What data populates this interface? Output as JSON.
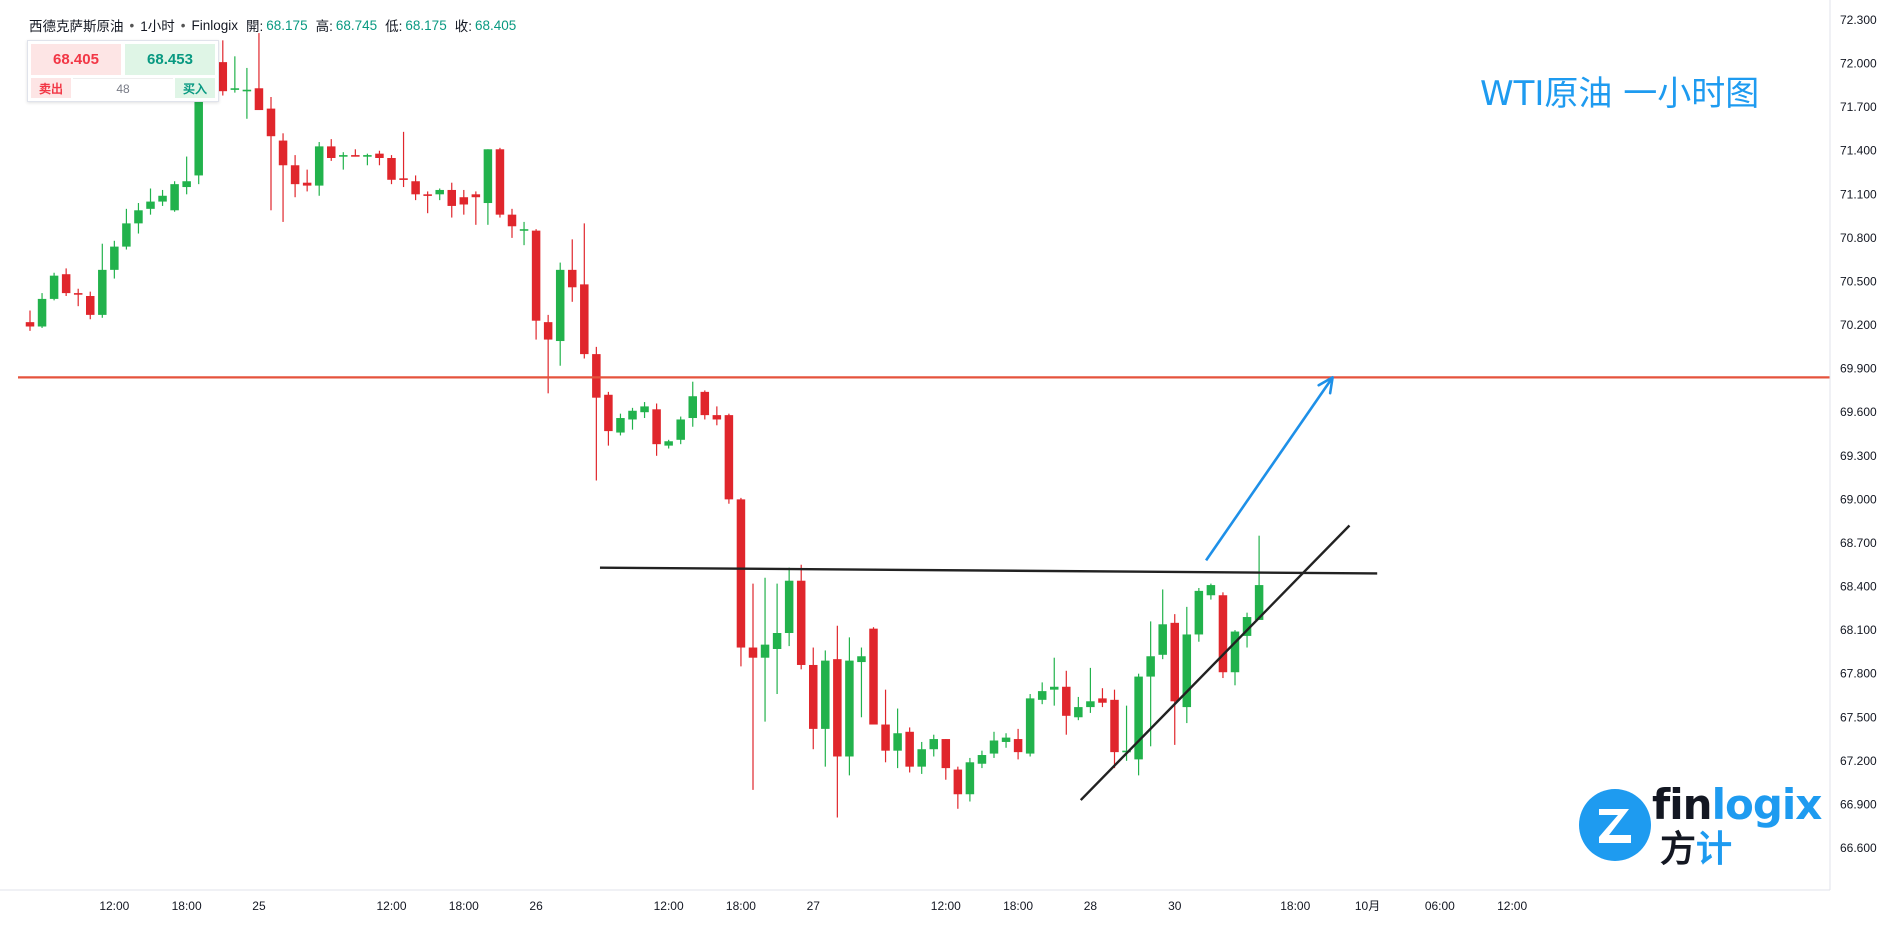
{
  "header": {
    "symbol": "西德克萨斯原油",
    "interval": "1小时",
    "source": "Finlogix",
    "open_label": "開:",
    "open": "68.175",
    "high_label": "高:",
    "high": "68.745",
    "low_label": "低:",
    "low": "68.175",
    "close_label": "收:",
    "close": "68.405"
  },
  "trade_box": {
    "sell_price": "68.405",
    "buy_price": "68.453",
    "sell_label": "卖出",
    "buy_label": "买入",
    "spread": "48"
  },
  "title": "WTI原油 一小时图",
  "logo": {
    "word_a": "fin",
    "word_b": "logix",
    "cn_a": "方",
    "cn_b": "计"
  },
  "colors": {
    "up": "#22b24c",
    "down": "#e0262c",
    "resistance": "#e5533d",
    "trendline": "#222222",
    "arrow": "#1e90e8",
    "title": "#1e9bf0"
  },
  "chart_data": {
    "type": "candlestick",
    "y_ticks": [
      "72.300",
      "72.000",
      "71.700",
      "71.400",
      "71.100",
      "70.800",
      "70.500",
      "70.200",
      "69.900",
      "69.600",
      "69.300",
      "69.000",
      "68.700",
      "68.400",
      "68.100",
      "67.800",
      "67.500",
      "67.200",
      "66.900",
      "66.600"
    ],
    "ylim": [
      66.4,
      72.35
    ],
    "x_tick_labels": [
      {
        "i": 7,
        "label": "12:00"
      },
      {
        "i": 13,
        "label": "18:00"
      },
      {
        "i": 19,
        "label": "25"
      },
      {
        "i": 30,
        "label": "12:00"
      },
      {
        "i": 36,
        "label": "18:00"
      },
      {
        "i": 42,
        "label": "26"
      },
      {
        "i": 53,
        "label": "12:00"
      },
      {
        "i": 59,
        "label": "18:00"
      },
      {
        "i": 65,
        "label": "27"
      },
      {
        "i": 76,
        "label": "12:00"
      },
      {
        "i": 82,
        "label": "18:00"
      },
      {
        "i": 88,
        "label": "28"
      },
      {
        "i": 95,
        "label": "30"
      },
      {
        "i": 105,
        "label": "18:00"
      },
      {
        "i": 111,
        "label": "10月"
      },
      {
        "i": 117,
        "label": "06:00"
      },
      {
        "i": 123,
        "label": "12:00"
      }
    ],
    "x_start_index": 0,
    "x_end_index": 127.5,
    "candles": [
      {
        "o": 70.22,
        "h": 70.3,
        "l": 70.16,
        "c": 70.19
      },
      {
        "o": 70.19,
        "h": 70.42,
        "l": 70.18,
        "c": 70.38
      },
      {
        "o": 70.38,
        "h": 70.56,
        "l": 70.37,
        "c": 70.54
      },
      {
        "o": 70.55,
        "h": 70.59,
        "l": 70.4,
        "c": 70.42
      },
      {
        "o": 70.42,
        "h": 70.45,
        "l": 70.33,
        "c": 70.41
      },
      {
        "o": 70.4,
        "h": 70.43,
        "l": 70.24,
        "c": 70.27
      },
      {
        "o": 70.27,
        "h": 70.76,
        "l": 70.25,
        "c": 70.58
      },
      {
        "o": 70.58,
        "h": 70.78,
        "l": 70.52,
        "c": 70.74
      },
      {
        "o": 70.74,
        "h": 71.0,
        "l": 70.72,
        "c": 70.9
      },
      {
        "o": 70.9,
        "h": 71.04,
        "l": 70.83,
        "c": 70.99
      },
      {
        "o": 71.0,
        "h": 71.14,
        "l": 70.96,
        "c": 71.05
      },
      {
        "o": 71.05,
        "h": 71.13,
        "l": 71.02,
        "c": 71.09
      },
      {
        "o": 70.99,
        "h": 71.19,
        "l": 70.98,
        "c": 71.17
      },
      {
        "o": 71.15,
        "h": 71.36,
        "l": 71.1,
        "c": 71.19
      },
      {
        "o": 71.23,
        "h": 71.81,
        "l": 71.17,
        "c": 71.78
      },
      {
        "o": 71.76,
        "h": 72.02,
        "l": 71.74,
        "c": 72.01
      },
      {
        "o": 72.01,
        "h": 72.16,
        "l": 71.78,
        "c": 71.81
      },
      {
        "o": 71.82,
        "h": 72.05,
        "l": 71.8,
        "c": 71.83
      },
      {
        "o": 71.82,
        "h": 71.97,
        "l": 71.62,
        "c": 71.82
      },
      {
        "o": 71.83,
        "h": 72.21,
        "l": 71.73,
        "c": 71.68
      },
      {
        "o": 71.69,
        "h": 71.77,
        "l": 70.99,
        "c": 71.5
      },
      {
        "o": 71.47,
        "h": 71.52,
        "l": 70.91,
        "c": 71.3
      },
      {
        "o": 71.3,
        "h": 71.37,
        "l": 71.08,
        "c": 71.17
      },
      {
        "o": 71.18,
        "h": 71.27,
        "l": 71.12,
        "c": 71.16
      },
      {
        "o": 71.16,
        "h": 71.46,
        "l": 71.09,
        "c": 71.43
      },
      {
        "o": 71.43,
        "h": 71.48,
        "l": 71.33,
        "c": 71.35
      },
      {
        "o": 71.36,
        "h": 71.39,
        "l": 71.27,
        "c": 71.37
      },
      {
        "o": 71.37,
        "h": 71.41,
        "l": 71.36,
        "c": 71.36
      },
      {
        "o": 71.37,
        "h": 71.38,
        "l": 71.3,
        "c": 71.37
      },
      {
        "o": 71.38,
        "h": 71.4,
        "l": 71.3,
        "c": 71.35
      },
      {
        "o": 71.35,
        "h": 71.37,
        "l": 71.17,
        "c": 71.2
      },
      {
        "o": 71.21,
        "h": 71.53,
        "l": 71.15,
        "c": 71.2
      },
      {
        "o": 71.19,
        "h": 71.23,
        "l": 71.06,
        "c": 71.1
      },
      {
        "o": 71.1,
        "h": 71.12,
        "l": 70.97,
        "c": 71.09
      },
      {
        "o": 71.1,
        "h": 71.14,
        "l": 71.06,
        "c": 71.13
      },
      {
        "o": 71.13,
        "h": 71.18,
        "l": 70.94,
        "c": 71.02
      },
      {
        "o": 71.08,
        "h": 71.13,
        "l": 70.96,
        "c": 71.03
      },
      {
        "o": 71.1,
        "h": 71.12,
        "l": 70.89,
        "c": 71.08
      },
      {
        "o": 71.04,
        "h": 71.41,
        "l": 70.89,
        "c": 71.41
      },
      {
        "o": 71.41,
        "h": 71.42,
        "l": 70.94,
        "c": 70.96
      },
      {
        "o": 70.96,
        "h": 71.0,
        "l": 70.8,
        "c": 70.88
      },
      {
        "o": 70.85,
        "h": 70.91,
        "l": 70.75,
        "c": 70.86
      },
      {
        "o": 70.85,
        "h": 70.86,
        "l": 70.1,
        "c": 70.23
      },
      {
        "o": 70.22,
        "h": 70.27,
        "l": 69.73,
        "c": 70.1
      },
      {
        "o": 70.09,
        "h": 70.63,
        "l": 69.92,
        "c": 70.58
      },
      {
        "o": 70.58,
        "h": 70.79,
        "l": 70.36,
        "c": 70.46
      },
      {
        "o": 70.48,
        "h": 70.9,
        "l": 69.97,
        "c": 70.0
      },
      {
        "o": 70.0,
        "h": 70.05,
        "l": 69.13,
        "c": 69.7
      },
      {
        "o": 69.72,
        "h": 69.74,
        "l": 69.37,
        "c": 69.47
      },
      {
        "o": 69.46,
        "h": 69.59,
        "l": 69.44,
        "c": 69.56
      },
      {
        "o": 69.55,
        "h": 69.63,
        "l": 69.48,
        "c": 69.61
      },
      {
        "o": 69.6,
        "h": 69.67,
        "l": 69.56,
        "c": 69.64
      },
      {
        "o": 69.62,
        "h": 69.66,
        "l": 69.3,
        "c": 69.38
      },
      {
        "o": 69.37,
        "h": 69.41,
        "l": 69.35,
        "c": 69.4
      },
      {
        "o": 69.41,
        "h": 69.57,
        "l": 69.38,
        "c": 69.55
      },
      {
        "o": 69.56,
        "h": 69.81,
        "l": 69.5,
        "c": 69.71
      },
      {
        "o": 69.74,
        "h": 69.75,
        "l": 69.55,
        "c": 69.58
      },
      {
        "o": 69.58,
        "h": 69.64,
        "l": 69.51,
        "c": 69.55
      },
      {
        "o": 69.58,
        "h": 69.59,
        "l": 68.97,
        "c": 69.0
      },
      {
        "o": 69.0,
        "h": 69.01,
        "l": 67.85,
        "c": 67.98
      },
      {
        "o": 67.98,
        "h": 68.42,
        "l": 67.0,
        "c": 67.91
      },
      {
        "o": 67.91,
        "h": 68.46,
        "l": 67.47,
        "c": 68.0
      },
      {
        "o": 67.97,
        "h": 68.42,
        "l": 67.66,
        "c": 68.08
      },
      {
        "o": 68.08,
        "h": 68.53,
        "l": 67.99,
        "c": 68.44
      },
      {
        "o": 68.44,
        "h": 68.55,
        "l": 67.83,
        "c": 67.86
      },
      {
        "o": 67.86,
        "h": 67.98,
        "l": 67.28,
        "c": 67.42
      },
      {
        "o": 67.42,
        "h": 67.96,
        "l": 67.16,
        "c": 67.89
      },
      {
        "o": 67.9,
        "h": 68.13,
        "l": 66.81,
        "c": 67.23
      },
      {
        "o": 67.23,
        "h": 68.05,
        "l": 67.1,
        "c": 67.89
      },
      {
        "o": 67.88,
        "h": 67.98,
        "l": 67.5,
        "c": 67.92
      },
      {
        "o": 68.11,
        "h": 68.12,
        "l": 67.48,
        "c": 67.45
      },
      {
        "o": 67.45,
        "h": 67.69,
        "l": 67.19,
        "c": 67.27
      },
      {
        "o": 67.27,
        "h": 67.56,
        "l": 67.15,
        "c": 67.39
      },
      {
        "o": 67.4,
        "h": 67.43,
        "l": 67.12,
        "c": 67.16
      },
      {
        "o": 67.16,
        "h": 67.33,
        "l": 67.11,
        "c": 67.28
      },
      {
        "o": 67.28,
        "h": 67.38,
        "l": 67.23,
        "c": 67.35
      },
      {
        "o": 67.35,
        "h": 67.35,
        "l": 67.07,
        "c": 67.15
      },
      {
        "o": 67.14,
        "h": 67.16,
        "l": 66.87,
        "c": 66.97
      },
      {
        "o": 66.97,
        "h": 67.22,
        "l": 66.92,
        "c": 67.19
      },
      {
        "o": 67.18,
        "h": 67.27,
        "l": 67.15,
        "c": 67.24
      },
      {
        "o": 67.25,
        "h": 67.4,
        "l": 67.22,
        "c": 67.34
      },
      {
        "o": 67.33,
        "h": 67.39,
        "l": 67.29,
        "c": 67.36
      },
      {
        "o": 67.35,
        "h": 67.42,
        "l": 67.21,
        "c": 67.26
      },
      {
        "o": 67.25,
        "h": 67.66,
        "l": 67.23,
        "c": 67.63
      },
      {
        "o": 67.62,
        "h": 67.74,
        "l": 67.59,
        "c": 67.68
      },
      {
        "o": 67.69,
        "h": 67.91,
        "l": 67.58,
        "c": 67.71
      },
      {
        "o": 67.71,
        "h": 67.82,
        "l": 67.38,
        "c": 67.51
      },
      {
        "o": 67.5,
        "h": 67.64,
        "l": 67.48,
        "c": 67.57
      },
      {
        "o": 67.57,
        "h": 67.84,
        "l": 67.53,
        "c": 67.61
      },
      {
        "o": 67.63,
        "h": 67.7,
        "l": 67.57,
        "c": 67.6
      },
      {
        "o": 67.62,
        "h": 67.69,
        "l": 67.15,
        "c": 67.26
      },
      {
        "o": 67.27,
        "h": 67.58,
        "l": 67.2,
        "c": 67.27
      },
      {
        "o": 67.21,
        "h": 67.8,
        "l": 67.1,
        "c": 67.78
      },
      {
        "o": 67.78,
        "h": 68.16,
        "l": 67.3,
        "c": 67.92
      },
      {
        "o": 67.93,
        "h": 68.38,
        "l": 67.9,
        "c": 68.14
      },
      {
        "o": 68.15,
        "h": 68.21,
        "l": 67.31,
        "c": 67.61
      },
      {
        "o": 67.57,
        "h": 68.26,
        "l": 67.46,
        "c": 68.07
      },
      {
        "o": 68.07,
        "h": 68.39,
        "l": 68.02,
        "c": 68.37
      },
      {
        "o": 68.34,
        "h": 68.42,
        "l": 68.31,
        "c": 68.41
      },
      {
        "o": 68.34,
        "h": 68.36,
        "l": 67.77,
        "c": 67.81
      },
      {
        "o": 67.81,
        "h": 68.1,
        "l": 67.72,
        "c": 68.09
      },
      {
        "o": 68.06,
        "h": 68.22,
        "l": 67.98,
        "c": 68.19
      },
      {
        "o": 68.17,
        "h": 68.75,
        "l": 68.17,
        "c": 68.41
      }
    ],
    "horizontal_levels": [
      69.84
    ],
    "annotation_lines": [
      {
        "name": "neckline",
        "p1": {
          "i": 47.3,
          "y": 68.53
        },
        "p2": {
          "i": 111.8,
          "y": 68.49
        }
      },
      {
        "name": "ascending-trendline",
        "p1": {
          "i": 87.2,
          "y": 66.93
        },
        "p2": {
          "i": 109.5,
          "y": 68.82
        }
      }
    ],
    "arrow": {
      "from": {
        "i": 97.6,
        "y": 68.58
      },
      "to": {
        "i": 108.1,
        "y": 69.84
      }
    }
  }
}
